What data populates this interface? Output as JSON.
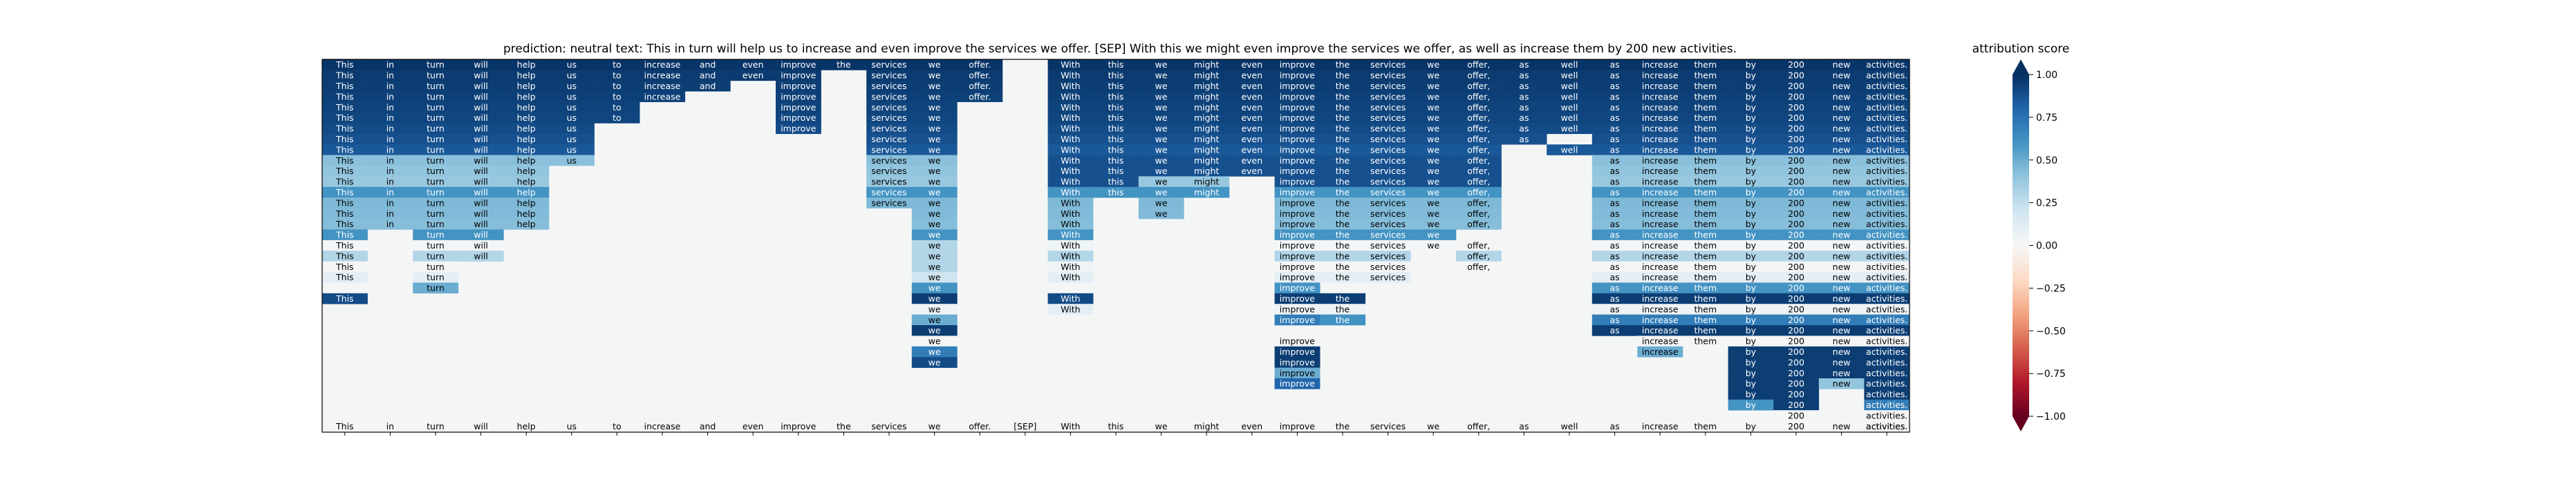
{
  "chart_data": {
    "type": "heatmap",
    "title": "prediction:  neutral     text:  This in turn will help us to increase and even improve the services we offer. [SEP] With this we might even improve the services we offer, as well as increase them by 200 new activities.",
    "tokens": [
      "This",
      "in",
      "turn",
      "will",
      "help",
      "us",
      "to",
      "increase",
      "and",
      "even",
      "improve",
      "the",
      "services",
      "we",
      "offer.",
      "[SEP]",
      "With",
      "this",
      "we",
      "might",
      "even",
      "improve",
      "the",
      "services",
      "we",
      "offer,",
      "as",
      "well",
      "as",
      "increase",
      "them",
      "by",
      "200",
      "new",
      "activities."
    ],
    "n_rows": 35,
    "cmap": "RdBu",
    "colorbar": {
      "label": "attribution score",
      "range": [
        -1.0,
        1.0
      ],
      "ticks": [
        "1.00",
        "0.75",
        "0.50",
        "0.25",
        "0.00",
        "−0.25",
        "−0.50",
        "−0.75",
        "−1.00"
      ]
    },
    "cell_values": [
      [
        0.98,
        0.98,
        0.98,
        0.98,
        0.98,
        0.98,
        0.98,
        0.98,
        0.98,
        0.98,
        0.98,
        0.98,
        0.98,
        0.98,
        0.98,
        null,
        0.98,
        0.98,
        0.98,
        0.98,
        0.98,
        0.98,
        0.98,
        0.98,
        0.98,
        0.98,
        0.98,
        0.98,
        0.98,
        0.98,
        0.98,
        0.98,
        0.98,
        0.98,
        0.98
      ],
      [
        0.96,
        0.96,
        0.96,
        0.96,
        0.96,
        0.96,
        0.96,
        0.96,
        0.96,
        0.96,
        0.96,
        null,
        0.96,
        0.96,
        0.96,
        null,
        0.96,
        0.96,
        0.96,
        0.96,
        0.96,
        0.96,
        0.96,
        0.96,
        0.96,
        0.96,
        0.96,
        0.96,
        0.96,
        0.96,
        0.96,
        0.96,
        0.96,
        0.96,
        0.96
      ],
      [
        0.95,
        0.95,
        0.95,
        0.95,
        0.95,
        0.95,
        0.95,
        0.95,
        0.95,
        null,
        0.95,
        null,
        0.95,
        0.95,
        0.95,
        null,
        0.95,
        0.95,
        0.95,
        0.95,
        0.95,
        0.95,
        0.95,
        0.95,
        0.95,
        0.95,
        0.95,
        0.95,
        0.95,
        0.95,
        0.95,
        0.95,
        0.95,
        0.95,
        0.95
      ],
      [
        0.94,
        0.94,
        0.94,
        0.94,
        0.94,
        0.94,
        0.94,
        0.94,
        null,
        null,
        0.94,
        null,
        0.94,
        0.94,
        0.94,
        null,
        0.94,
        0.94,
        0.94,
        0.94,
        0.94,
        0.94,
        0.94,
        0.94,
        0.94,
        0.94,
        0.94,
        0.94,
        0.94,
        0.94,
        0.94,
        0.94,
        0.94,
        0.94,
        0.94
      ],
      [
        0.93,
        0.93,
        0.93,
        0.93,
        0.93,
        0.93,
        0.93,
        null,
        null,
        null,
        0.93,
        null,
        0.93,
        0.93,
        null,
        null,
        0.93,
        0.93,
        0.93,
        0.93,
        0.93,
        0.93,
        0.93,
        0.93,
        0.93,
        0.93,
        0.93,
        0.93,
        0.93,
        0.93,
        0.93,
        0.93,
        0.93,
        0.93,
        0.93
      ],
      [
        0.92,
        0.92,
        0.92,
        0.92,
        0.92,
        0.92,
        0.92,
        null,
        null,
        null,
        0.92,
        null,
        0.92,
        0.92,
        null,
        null,
        0.92,
        0.92,
        0.92,
        0.92,
        0.92,
        0.92,
        0.92,
        0.92,
        0.92,
        0.92,
        0.92,
        0.92,
        0.92,
        0.92,
        0.92,
        0.92,
        0.92,
        0.92,
        0.92
      ],
      [
        0.9,
        0.9,
        0.9,
        0.9,
        0.9,
        0.9,
        null,
        null,
        null,
        null,
        0.9,
        null,
        0.9,
        0.9,
        null,
        null,
        0.9,
        0.9,
        0.9,
        0.9,
        0.9,
        0.9,
        0.9,
        0.9,
        0.9,
        0.9,
        0.9,
        0.9,
        0.9,
        0.9,
        0.9,
        0.9,
        0.9,
        0.9,
        0.9
      ],
      [
        0.88,
        0.88,
        0.88,
        0.88,
        0.88,
        0.88,
        null,
        null,
        null,
        null,
        null,
        null,
        0.88,
        0.88,
        null,
        null,
        0.88,
        0.88,
        0.88,
        0.88,
        0.88,
        0.88,
        0.88,
        0.88,
        0.88,
        0.88,
        0.88,
        null,
        0.88,
        0.88,
        0.88,
        0.88,
        0.88,
        0.88,
        0.88
      ],
      [
        0.85,
        0.85,
        0.85,
        0.85,
        0.85,
        0.85,
        null,
        null,
        null,
        null,
        null,
        null,
        0.85,
        0.85,
        null,
        null,
        0.85,
        0.85,
        0.85,
        0.85,
        0.85,
        0.85,
        0.85,
        0.85,
        0.85,
        0.85,
        null,
        0.85,
        0.85,
        0.85,
        0.85,
        0.85,
        0.85,
        0.85,
        0.85
      ],
      [
        0.42,
        0.42,
        0.42,
        0.42,
        0.42,
        0.42,
        null,
        null,
        null,
        null,
        null,
        null,
        0.42,
        0.42,
        null,
        null,
        0.88,
        0.88,
        0.88,
        0.88,
        0.88,
        0.88,
        0.88,
        0.88,
        0.88,
        0.88,
        null,
        null,
        0.42,
        0.42,
        0.42,
        0.42,
        0.42,
        0.42,
        0.42
      ],
      [
        0.4,
        0.4,
        0.4,
        0.4,
        0.4,
        null,
        null,
        null,
        null,
        null,
        null,
        null,
        0.4,
        0.4,
        null,
        null,
        0.88,
        0.88,
        0.88,
        0.88,
        0.88,
        0.88,
        0.88,
        0.88,
        0.88,
        0.88,
        null,
        null,
        0.4,
        0.4,
        0.4,
        0.4,
        0.4,
        0.4,
        0.4
      ],
      [
        0.38,
        0.38,
        0.38,
        0.38,
        0.38,
        null,
        null,
        null,
        null,
        null,
        null,
        null,
        0.38,
        0.38,
        null,
        null,
        0.88,
        0.88,
        0.38,
        0.38,
        null,
        0.88,
        0.88,
        0.88,
        0.88,
        0.88,
        null,
        null,
        0.38,
        0.38,
        0.38,
        0.38,
        0.38,
        0.38,
        0.38
      ],
      [
        0.6,
        0.6,
        0.6,
        0.6,
        0.6,
        null,
        null,
        null,
        null,
        null,
        null,
        null,
        0.6,
        0.6,
        null,
        null,
        0.6,
        0.6,
        0.6,
        0.6,
        null,
        0.6,
        0.6,
        0.6,
        0.6,
        0.6,
        null,
        null,
        0.6,
        0.6,
        0.6,
        0.6,
        0.6,
        0.6,
        0.6
      ],
      [
        0.45,
        0.45,
        0.45,
        0.45,
        0.45,
        null,
        null,
        null,
        null,
        null,
        null,
        null,
        0.45,
        0.45,
        null,
        null,
        0.45,
        null,
        0.45,
        null,
        null,
        0.45,
        0.45,
        0.45,
        0.45,
        0.45,
        null,
        null,
        0.45,
        0.45,
        0.45,
        0.45,
        0.45,
        0.45,
        0.45
      ],
      [
        0.44,
        0.44,
        0.44,
        0.44,
        0.44,
        null,
        null,
        null,
        null,
        null,
        null,
        null,
        null,
        0.44,
        null,
        null,
        0.44,
        null,
        0.44,
        null,
        null,
        0.44,
        0.44,
        0.44,
        0.44,
        0.44,
        null,
        null,
        0.44,
        0.44,
        0.44,
        0.44,
        0.44,
        0.44,
        0.44
      ],
      [
        0.43,
        0.43,
        0.43,
        0.43,
        0.43,
        null,
        null,
        null,
        null,
        null,
        null,
        null,
        null,
        0.43,
        null,
        null,
        0.43,
        null,
        null,
        null,
        null,
        0.43,
        0.43,
        0.43,
        0.43,
        0.43,
        null,
        null,
        0.43,
        0.43,
        0.43,
        0.43,
        0.43,
        0.43,
        0.43
      ],
      [
        0.6,
        null,
        0.6,
        0.6,
        null,
        null,
        null,
        null,
        null,
        null,
        null,
        null,
        null,
        0.6,
        null,
        null,
        0.6,
        null,
        null,
        null,
        null,
        0.6,
        0.6,
        0.6,
        0.6,
        null,
        null,
        null,
        0.6,
        0.6,
        0.6,
        0.6,
        0.6,
        0.6,
        0.6
      ],
      [
        0.02,
        null,
        0.02,
        0.02,
        null,
        null,
        null,
        null,
        null,
        null,
        null,
        null,
        null,
        0.3,
        null,
        null,
        0.05,
        null,
        null,
        null,
        null,
        0.02,
        0.02,
        0.02,
        0.02,
        0.02,
        null,
        null,
        0.02,
        0.02,
        0.02,
        0.02,
        0.02,
        0.02,
        0.02
      ],
      [
        0.3,
        null,
        0.3,
        0.3,
        null,
        null,
        null,
        null,
        null,
        null,
        null,
        null,
        null,
        0.3,
        null,
        null,
        0.3,
        null,
        null,
        null,
        null,
        0.3,
        0.3,
        0.3,
        null,
        0.3,
        null,
        null,
        0.3,
        0.3,
        0.3,
        0.3,
        0.3,
        0.3,
        0.3
      ],
      [
        0.02,
        null,
        0.02,
        null,
        null,
        null,
        null,
        null,
        null,
        null,
        null,
        null,
        null,
        0.3,
        null,
        null,
        0.05,
        null,
        null,
        null,
        null,
        0.02,
        0.02,
        0.02,
        null,
        0.02,
        null,
        null,
        0.02,
        0.02,
        0.02,
        0.02,
        0.02,
        0.02,
        0.02
      ],
      [
        0.1,
        null,
        0.1,
        null,
        null,
        null,
        null,
        null,
        null,
        null,
        null,
        null,
        null,
        0.2,
        null,
        null,
        0.1,
        null,
        null,
        null,
        null,
        0.1,
        0.1,
        0.1,
        null,
        null,
        null,
        null,
        0.1,
        0.1,
        0.1,
        0.1,
        0.1,
        0.1,
        0.1
      ],
      [
        null,
        null,
        0.5,
        null,
        null,
        null,
        null,
        null,
        null,
        null,
        null,
        null,
        null,
        0.6,
        null,
        null,
        null,
        null,
        null,
        null,
        null,
        0.6,
        null,
        null,
        null,
        null,
        null,
        null,
        0.6,
        0.6,
        0.6,
        0.6,
        0.6,
        0.6,
        0.6
      ],
      [
        0.9,
        null,
        null,
        null,
        null,
        null,
        null,
        null,
        null,
        null,
        null,
        null,
        null,
        0.95,
        null,
        null,
        0.9,
        null,
        null,
        null,
        null,
        0.95,
        0.95,
        null,
        null,
        null,
        null,
        null,
        0.95,
        0.95,
        0.95,
        0.95,
        0.95,
        0.95,
        0.95
      ],
      [
        null,
        null,
        null,
        null,
        null,
        null,
        null,
        null,
        null,
        null,
        null,
        null,
        null,
        0.05,
        null,
        null,
        0.1,
        null,
        null,
        null,
        null,
        0.05,
        0.05,
        null,
        null,
        null,
        null,
        null,
        0.05,
        0.05,
        0.05,
        0.05,
        0.05,
        0.05,
        0.05
      ],
      [
        null,
        null,
        null,
        null,
        null,
        null,
        null,
        null,
        null,
        null,
        null,
        null,
        null,
        0.5,
        null,
        null,
        null,
        null,
        null,
        null,
        null,
        0.7,
        0.6,
        null,
        null,
        null,
        null,
        null,
        0.7,
        0.7,
        0.7,
        0.7,
        0.7,
        0.7,
        0.7
      ],
      [
        null,
        null,
        null,
        null,
        null,
        null,
        null,
        null,
        null,
        null,
        null,
        null,
        null,
        0.95,
        null,
        null,
        null,
        null,
        null,
        null,
        null,
        null,
        null,
        null,
        null,
        null,
        null,
        null,
        0.95,
        0.95,
        0.95,
        0.95,
        0.95,
        0.95,
        0.95
      ],
      [
        null,
        null,
        null,
        null,
        null,
        null,
        null,
        null,
        null,
        null,
        null,
        null,
        null,
        0.02,
        null,
        null,
        null,
        null,
        null,
        null,
        null,
        0.02,
        null,
        null,
        null,
        null,
        null,
        null,
        null,
        0.02,
        0.02,
        0.02,
        0.02,
        0.02,
        0.02
      ],
      [
        null,
        null,
        null,
        null,
        null,
        null,
        null,
        null,
        null,
        null,
        null,
        null,
        null,
        0.7,
        null,
        null,
        null,
        null,
        null,
        null,
        null,
        0.95,
        null,
        null,
        null,
        null,
        null,
        null,
        null,
        0.5,
        null,
        0.95,
        0.95,
        0.95,
        0.95
      ],
      [
        null,
        null,
        null,
        null,
        null,
        null,
        null,
        null,
        null,
        null,
        null,
        null,
        null,
        0.9,
        null,
        null,
        null,
        null,
        null,
        null,
        null,
        0.95,
        null,
        null,
        null,
        null,
        null,
        null,
        null,
        null,
        null,
        0.95,
        0.95,
        0.95,
        0.95
      ],
      [
        null,
        null,
        null,
        null,
        null,
        null,
        null,
        null,
        null,
        null,
        null,
        null,
        null,
        null,
        null,
        null,
        null,
        null,
        null,
        null,
        null,
        0.5,
        null,
        null,
        null,
        null,
        null,
        null,
        null,
        null,
        null,
        0.95,
        0.95,
        0.95,
        0.95
      ],
      [
        null,
        null,
        null,
        null,
        null,
        null,
        null,
        null,
        null,
        null,
        null,
        null,
        null,
        null,
        null,
        null,
        null,
        null,
        null,
        null,
        null,
        0.8,
        null,
        null,
        null,
        null,
        null,
        null,
        null,
        null,
        null,
        0.95,
        0.95,
        0.4,
        0.95
      ],
      [
        null,
        null,
        null,
        null,
        null,
        null,
        null,
        null,
        null,
        null,
        null,
        null,
        null,
        null,
        null,
        null,
        null,
        null,
        null,
        null,
        null,
        null,
        null,
        null,
        null,
        null,
        null,
        null,
        null,
        null,
        null,
        0.95,
        0.95,
        null,
        0.95
      ],
      [
        null,
        null,
        null,
        null,
        null,
        null,
        null,
        null,
        null,
        null,
        null,
        null,
        null,
        null,
        null,
        null,
        null,
        null,
        null,
        null,
        null,
        null,
        null,
        null,
        null,
        null,
        null,
        null,
        null,
        null,
        null,
        0.6,
        0.95,
        null,
        0.7
      ],
      [
        null,
        null,
        null,
        null,
        null,
        null,
        null,
        null,
        null,
        null,
        null,
        null,
        null,
        null,
        null,
        null,
        null,
        null,
        null,
        null,
        null,
        null,
        null,
        null,
        null,
        null,
        null,
        null,
        null,
        null,
        null,
        null,
        0.02,
        null,
        0.02
      ],
      [
        null,
        null,
        null,
        null,
        null,
        null,
        null,
        null,
        null,
        null,
        null,
        null,
        null,
        null,
        null,
        null,
        null,
        null,
        null,
        null,
        null,
        null,
        null,
        null,
        null,
        null,
        null,
        null,
        null,
        null,
        null,
        null,
        null,
        null,
        0.02
      ]
    ]
  }
}
